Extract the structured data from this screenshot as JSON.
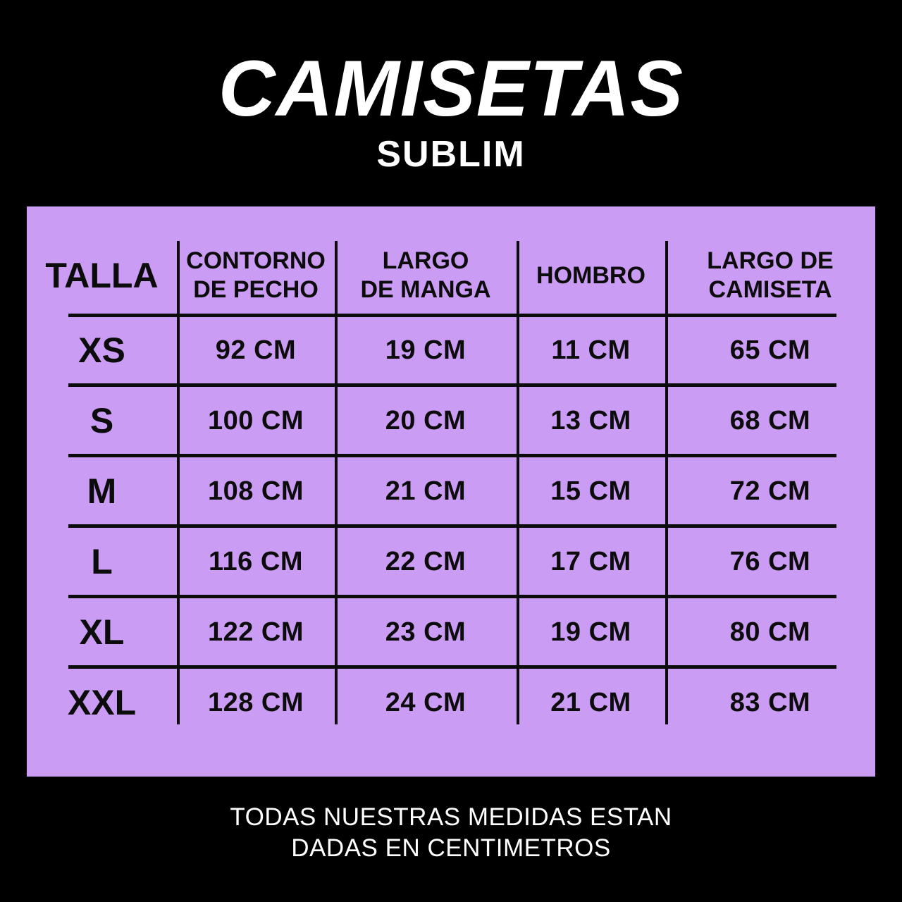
{
  "header": {
    "title": "CAMISETAS",
    "subtitle": "SUBLIM"
  },
  "footer": {
    "line1": "TODAS NUESTRAS MEDIDAS ESTAN",
    "line2": "DADAS EN CENTIMETROS"
  },
  "colors": {
    "background": "#000000",
    "panel": "#ca9cf4",
    "ink": "#0c0c0c",
    "heading_text": "#ffffff"
  },
  "chart_data": {
    "type": "table",
    "title": "CAMISETAS SUBLIM",
    "units": "CM",
    "columns": [
      {
        "label": "TALLA",
        "lines": [
          "TALLA"
        ]
      },
      {
        "label": "CONTORNO DE PECHO",
        "lines": [
          "CONTORNO",
          "DE PECHO"
        ]
      },
      {
        "label": "LARGO DE MANGA",
        "lines": [
          "LARGO",
          "DE MANGA"
        ]
      },
      {
        "label": "HOMBRO",
        "lines": [
          "HOMBRO"
        ]
      },
      {
        "label": "LARGO DE CAMISETA",
        "lines": [
          "LARGO DE",
          "CAMISETA"
        ]
      }
    ],
    "rows": [
      [
        "XS",
        "92 CM",
        "19 CM",
        "11 CM",
        "65 CM"
      ],
      [
        "S",
        "100 CM",
        "20 CM",
        "13 CM",
        "68 CM"
      ],
      [
        "M",
        "108 CM",
        "21 CM",
        "15 CM",
        "72 CM"
      ],
      [
        "L",
        "116 CM",
        "22 CM",
        "17 CM",
        "76 CM"
      ],
      [
        "XL",
        "122 CM",
        "23 CM",
        "19 CM",
        "80 CM"
      ],
      [
        "XXL",
        "128 CM",
        "24 CM",
        "21 CM",
        "83 CM"
      ]
    ]
  }
}
